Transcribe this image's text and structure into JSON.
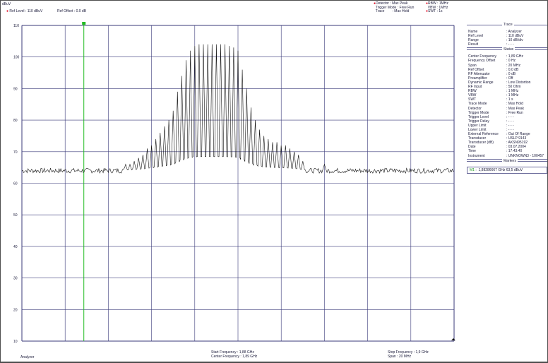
{
  "header": {
    "unit": "dBuV",
    "ref_level": "Ref Level : 110 dBuV",
    "ref_offset": "Ref Offset : 0.0 dB",
    "detector_label": "Detector",
    "detector_value": ": Max Peak",
    "trigger_label": "Trigger Mode",
    "trigger_value": ": Free Run",
    "trace_label": "Trace",
    "trace_value": ": Max Hold",
    "rbw": "RBW : 1MHz",
    "vbw": "VBW : 1MHz",
    "swt": "SWT : 1s"
  },
  "chart_data": {
    "type": "line",
    "ylabel": "dBuV",
    "ylim": [
      10,
      110
    ],
    "yticks": [
      "110",
      "100",
      "90",
      "80",
      "70",
      "60",
      "50",
      "40",
      "30",
      "20",
      "10"
    ],
    "xlim_ghz": [
      1.88,
      1.9
    ],
    "grid": true,
    "marker": {
      "name": "M1",
      "x_ghz": 1.88286667,
      "y_dbuv": 63.5
    },
    "series": [
      {
        "style": "noise+comb",
        "noise_floor_dbuv": 64,
        "peaks": [
          [
            1.8848,
            66
          ],
          [
            1.885,
            66
          ],
          [
            1.8852,
            67
          ],
          [
            1.8854,
            68
          ],
          [
            1.8856,
            69
          ],
          [
            1.8858,
            71
          ],
          [
            1.886,
            72
          ],
          [
            1.8862,
            74
          ],
          [
            1.8864,
            76
          ],
          [
            1.8866,
            78
          ],
          [
            1.8868,
            80
          ],
          [
            1.887,
            83
          ],
          [
            1.8872,
            89
          ],
          [
            1.8874,
            94
          ],
          [
            1.8876,
            99
          ],
          [
            1.8878,
            102
          ],
          [
            1.888,
            103.5
          ],
          [
            1.8882,
            104
          ],
          [
            1.8884,
            104
          ],
          [
            1.8886,
            104
          ],
          [
            1.8888,
            104
          ],
          [
            1.889,
            104
          ],
          [
            1.8892,
            104
          ],
          [
            1.8894,
            104
          ],
          [
            1.8896,
            103.5
          ],
          [
            1.8898,
            103
          ],
          [
            1.89,
            102
          ],
          [
            1.8902,
            96
          ],
          [
            1.8904,
            90
          ],
          [
            1.8906,
            84
          ],
          [
            1.8908,
            80
          ],
          [
            1.891,
            77
          ],
          [
            1.8912,
            75
          ],
          [
            1.8914,
            74
          ],
          [
            1.8916,
            73
          ],
          [
            1.8918,
            73
          ],
          [
            1.892,
            72
          ],
          [
            1.8922,
            72
          ],
          [
            1.8924,
            71
          ],
          [
            1.8926,
            70
          ],
          [
            1.8928,
            69
          ],
          [
            1.893,
            67
          ],
          [
            1.894,
            66
          ]
        ]
      }
    ]
  },
  "panel": {
    "trace_title": "Trace",
    "trace_rows": [
      {
        "k": "Name",
        "v": ": Analyzer"
      },
      {
        "k": "Ref Level",
        "v": ": 110    dBuV"
      },
      {
        "k": "Range",
        "v": ": 10 dB/div"
      },
      {
        "k": "Result",
        "v": ": - - -"
      }
    ],
    "status_title": "Status",
    "status_rows": [
      {
        "k": "Center Frequency",
        "v": ":  1,89 GHz"
      },
      {
        "k": "Frequency Offset",
        "v": ":    0     Hz"
      },
      {
        "k": "Span",
        "v": ":   20     MHz"
      },
      {
        "k": "Ref Offset",
        "v": ":   0,0   dB"
      },
      {
        "k": "RF Attenuator",
        "v": ":    0     dB"
      },
      {
        "k": "Preamplifier",
        "v": ": Off"
      },
      {
        "k": "Dynamic Range",
        "v": ": Low Distortion"
      },
      {
        "k": "RF Input",
        "v": ":   50    Ohm"
      },
      {
        "k": "RBW",
        "v": ":    1     MHz"
      },
      {
        "k": "VBW",
        "v": ":    1     MHz"
      },
      {
        "k": "SWT",
        "v": ":    1     s"
      },
      {
        "k": "Trace Mode",
        "v": ": Max Hold"
      },
      {
        "k": "Detector",
        "v": ": Max Peak"
      },
      {
        "k": "Trigger Mode",
        "v": ": Free Run"
      },
      {
        "k": "Trigger Level",
        "v": ": - - -"
      },
      {
        "k": "Trigger Delay",
        "v": ": - - -"
      },
      {
        "k": "Upper Limit",
        "v": ": - - -"
      },
      {
        "k": "Lower Limit",
        "v": ": - - -"
      },
      {
        "k": "External Reference",
        "v": ": Out Of Range"
      },
      {
        "k": "Transducer",
        "v": ": USLP 9143"
      },
      {
        "k": "Transducer (dB)",
        "v": ": AKSN95192"
      },
      {
        "k": "Date",
        "v": ": 03.07.2004"
      },
      {
        "k": "Time",
        "v": ": 17:43:40"
      },
      {
        "k": "Instrument",
        "v": ": UNKNOWN3 - 100457"
      }
    ],
    "markers_title": "Markers",
    "marker_name": "M1",
    "marker_text": "1,88286667 GHz    63,5 dBuV"
  },
  "footer": {
    "left": "Analyzer",
    "start_freq": "Start Frequency   : 1,88 GHz",
    "center_freq": "Center Frequency : 1,89 GHz",
    "stop_freq": "Stop Frequency : 1,9 GHz",
    "span": "Span                  : 20 MHz"
  },
  "colors": {
    "grid": "#3a3a7a",
    "trace": "#1a1a1a",
    "marker": "#22bb22",
    "accent": "#e0001a"
  }
}
